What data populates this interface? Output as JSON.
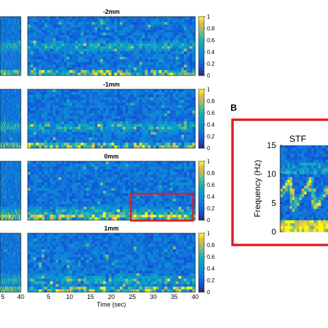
{
  "colors": {
    "low": "#2d2fa3",
    "mid": "#1c8fd0",
    "high": "#f6e61e",
    "highlight": "#e11b22"
  },
  "chart_data": [
    {
      "type": "heatmap",
      "panels": [
        {
          "title": "-2mm",
          "band_bias": "mid-high"
        },
        {
          "title": "-1mm",
          "band_bias": "mid"
        },
        {
          "title": "0mm",
          "band_bias": "low"
        },
        {
          "title": "1mm",
          "band_bias": "mid-low"
        }
      ],
      "x_ticks_left": [
        "5",
        "40"
      ],
      "x_ticks": [
        "5",
        "10",
        "15",
        "20",
        "25",
        "30",
        "35",
        "40"
      ],
      "xlim": [
        0,
        40
      ],
      "xlabel": "Time (sec)",
      "colorbar_ticks": [
        "0",
        "0.2",
        "0.4",
        "0.6",
        "0.8",
        "1"
      ],
      "colorbar_range": [
        0,
        1
      ],
      "highlight_box": {
        "panel": "0mm",
        "x_range": [
          25,
          40
        ]
      }
    },
    {
      "type": "heatmap",
      "panel_label": "B",
      "title": "STF",
      "ylabel": "Frequency (Hz)",
      "y_ticks": [
        "0",
        "5",
        "10",
        "15"
      ],
      "ylim": [
        0,
        15
      ]
    }
  ]
}
